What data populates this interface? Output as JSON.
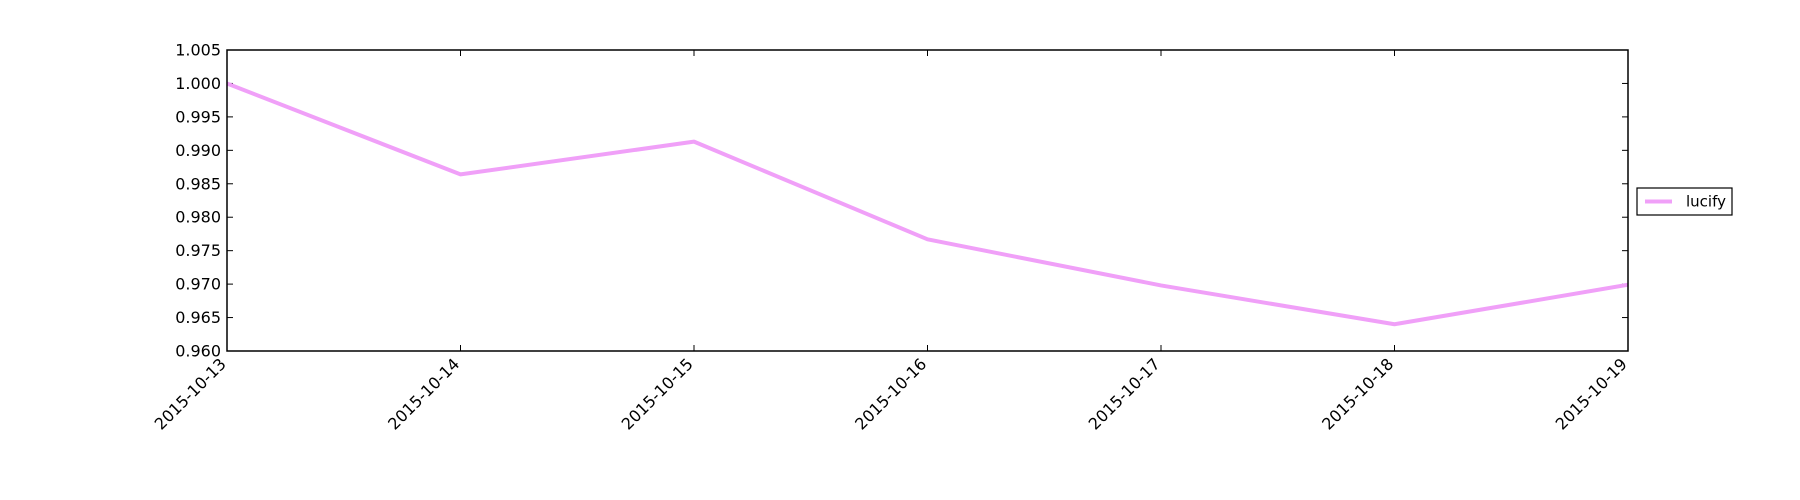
{
  "chart_data": {
    "type": "line",
    "title": "",
    "xlabel": "",
    "ylabel": "",
    "x": [
      "2015-10-13",
      "2015-10-14",
      "2015-10-15",
      "2015-10-16",
      "2015-10-17",
      "2015-10-18",
      "2015-10-19"
    ],
    "series": [
      {
        "name": "lucify",
        "color": "#f0a0f8",
        "values": [
          1.0,
          0.9864,
          0.9913,
          0.9767,
          0.9698,
          0.964,
          0.9699
        ]
      }
    ],
    "ylim": [
      0.96,
      1.005
    ],
    "yticks": [
      "0.960",
      "0.965",
      "0.970",
      "0.975",
      "0.980",
      "0.985",
      "0.990",
      "0.995",
      "1.000",
      "1.005"
    ],
    "grid": false,
    "legend_position": "right, outside plot, vertically centered"
  }
}
